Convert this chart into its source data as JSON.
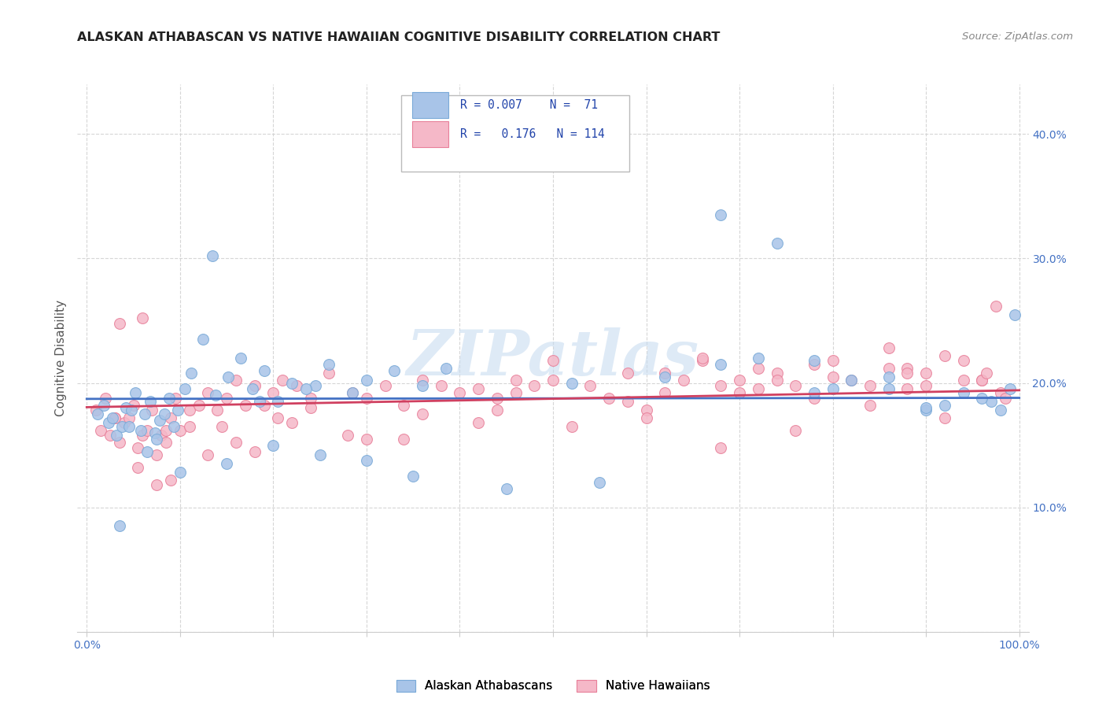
{
  "title": "ALASKAN ATHABASCAN VS NATIVE HAWAIIAN COGNITIVE DISABILITY CORRELATION CHART",
  "source": "Source: ZipAtlas.com",
  "ylabel": "Cognitive Disability",
  "xlim": [
    0,
    100
  ],
  "ylim": [
    0,
    42
  ],
  "xticks": [
    0,
    10,
    20,
    30,
    40,
    50,
    60,
    70,
    80,
    90,
    100
  ],
  "yticks": [
    0,
    10,
    20,
    30,
    40
  ],
  "xtick_labels": [
    "0.0%",
    "",
    "",
    "",
    "",
    "",
    "",
    "",
    "",
    "",
    "100.0%"
  ],
  "ytick_labels": [
    "",
    "10.0%",
    "20.0%",
    "30.0%",
    "40.0%"
  ],
  "blue_color": "#A8C4E8",
  "pink_color": "#F5B8C8",
  "blue_edge": "#7AAAD8",
  "pink_edge": "#E8809A",
  "line_blue": "#4472C4",
  "line_pink": "#D04060",
  "R1": 0.007,
  "R2": 0.176,
  "title_color": "#222222",
  "source_color": "#888888",
  "axis_color": "#4472C4",
  "watermark": "ZIPatlas",
  "blue_x": [
    1.2,
    1.8,
    2.3,
    2.8,
    3.2,
    3.8,
    4.2,
    4.8,
    5.2,
    5.8,
    6.2,
    6.8,
    7.3,
    7.8,
    8.3,
    8.8,
    9.3,
    9.8,
    10.5,
    11.2,
    12.5,
    13.8,
    15.2,
    16.5,
    17.8,
    19.0,
    20.5,
    22.0,
    24.5,
    26.0,
    28.5,
    30.0,
    33.0,
    36.0,
    38.5,
    13.5,
    18.5,
    23.5,
    35.0,
    45.0,
    55.0,
    62.0,
    68.0,
    72.0,
    78.0,
    82.0,
    86.0,
    90.0,
    94.0,
    97.0,
    99.5,
    4.5,
    7.5,
    3.5,
    6.5,
    10.0,
    15.0,
    20.0,
    25.0,
    30.0,
    68.0,
    74.0,
    80.0,
    86.0,
    92.0,
    98.0,
    52.0,
    78.0,
    90.0,
    96.0,
    99.0
  ],
  "blue_y": [
    17.5,
    18.2,
    16.8,
    17.2,
    15.8,
    16.5,
    18.0,
    17.8,
    19.2,
    16.2,
    17.5,
    18.5,
    16.0,
    17.0,
    17.5,
    18.8,
    16.5,
    17.8,
    19.5,
    20.8,
    23.5,
    19.0,
    20.5,
    22.0,
    19.5,
    21.0,
    18.5,
    20.0,
    19.8,
    21.5,
    19.2,
    20.2,
    21.0,
    19.8,
    21.2,
    30.2,
    18.5,
    19.5,
    12.5,
    11.5,
    12.0,
    20.5,
    21.5,
    22.0,
    21.8,
    20.2,
    19.5,
    17.8,
    19.2,
    18.5,
    25.5,
    16.5,
    15.5,
    8.5,
    14.5,
    12.8,
    13.5,
    15.0,
    14.2,
    13.8,
    33.5,
    31.2,
    19.5,
    20.5,
    18.2,
    17.8,
    20.0,
    19.2,
    18.0,
    18.8,
    19.5
  ],
  "pink_x": [
    1.0,
    1.5,
    2.0,
    2.5,
    3.0,
    3.5,
    4.0,
    4.5,
    5.0,
    5.5,
    6.0,
    6.5,
    7.0,
    7.5,
    8.0,
    8.5,
    9.0,
    9.5,
    10.0,
    11.0,
    12.0,
    13.0,
    14.0,
    15.0,
    16.0,
    17.0,
    18.0,
    19.0,
    20.0,
    21.0,
    22.5,
    24.0,
    26.0,
    28.5,
    30.0,
    32.0,
    34.0,
    36.0,
    38.0,
    40.0,
    44.0,
    46.0,
    48.0,
    50.0,
    54.0,
    58.0,
    60.0,
    62.0,
    64.0,
    66.0,
    68.0,
    70.0,
    72.0,
    74.0,
    76.0,
    78.0,
    80.0,
    82.0,
    84.0,
    86.0,
    88.0,
    90.0,
    92.0,
    94.0,
    96.0,
    97.5,
    3.0,
    6.0,
    9.0,
    13.0,
    18.0,
    24.0,
    30.0,
    3.5,
    7.5,
    11.0,
    16.0,
    22.0,
    5.5,
    8.5,
    14.5,
    20.5,
    28.0,
    36.0,
    44.0,
    52.0,
    60.0,
    68.0,
    76.0,
    84.0,
    92.0,
    98.0,
    56.0,
    66.0,
    78.0,
    88.0,
    96.0,
    42.0,
    50.0,
    70.0,
    80.0,
    90.0,
    98.5,
    62.0,
    72.0,
    86.0,
    94.0,
    46.0,
    58.0,
    74.0,
    88.0,
    96.5,
    34.0,
    42.0
  ],
  "pink_y": [
    17.8,
    16.2,
    18.8,
    15.8,
    17.2,
    15.2,
    16.8,
    17.2,
    18.2,
    14.8,
    15.8,
    16.2,
    17.8,
    14.2,
    15.8,
    16.2,
    17.2,
    18.8,
    16.2,
    17.8,
    18.2,
    19.2,
    17.8,
    18.8,
    20.2,
    18.2,
    19.8,
    18.2,
    19.2,
    20.2,
    19.8,
    18.8,
    20.8,
    19.2,
    18.8,
    19.8,
    18.2,
    20.2,
    19.8,
    19.2,
    18.8,
    20.2,
    19.8,
    20.2,
    19.8,
    20.8,
    17.8,
    19.2,
    20.2,
    21.8,
    19.8,
    20.2,
    21.2,
    20.8,
    19.8,
    18.8,
    21.8,
    20.2,
    19.8,
    22.8,
    21.2,
    20.8,
    22.2,
    21.8,
    20.2,
    26.2,
    17.2,
    25.2,
    12.2,
    14.2,
    14.5,
    18.0,
    15.5,
    24.8,
    11.8,
    16.5,
    15.2,
    16.8,
    13.2,
    15.2,
    16.5,
    17.2,
    15.8,
    17.5,
    17.8,
    16.5,
    17.2,
    14.8,
    16.2,
    18.2,
    17.2,
    19.2,
    18.8,
    22.0,
    21.5,
    20.8,
    20.2,
    19.5,
    21.8,
    19.2,
    20.5,
    19.8,
    18.8,
    20.8,
    19.5,
    21.2,
    20.2,
    19.2,
    18.5,
    20.2,
    19.5,
    20.8,
    15.5,
    16.8
  ]
}
